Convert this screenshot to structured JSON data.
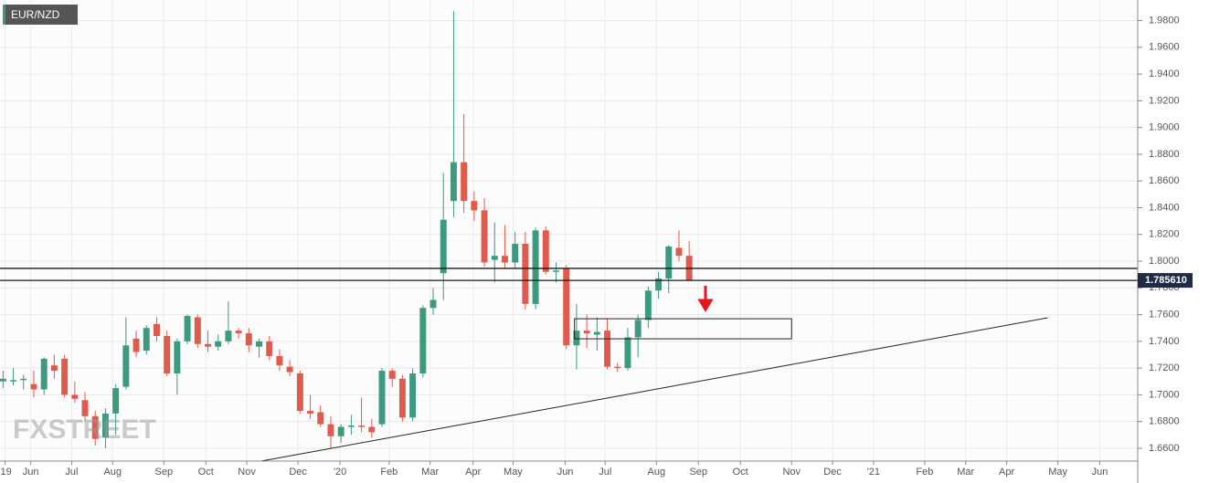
{
  "chart_data": {
    "type": "candlestick",
    "title": "EUR/NZD",
    "watermark": "FXSTREET",
    "up_color": "#3b9a80",
    "down_color": "#e05a4d",
    "grid": true,
    "xlim": [
      -0.3,
      110.8
    ],
    "ylim": [
      1.6504,
      1.9954
    ],
    "yticks": [
      {
        "value": 1.66,
        "label": "1.6600"
      },
      {
        "value": 1.68,
        "label": "1.6800"
      },
      {
        "value": 1.7,
        "label": "1.7000"
      },
      {
        "value": 1.72,
        "label": "1.7200"
      },
      {
        "value": 1.74,
        "label": "1.7400"
      },
      {
        "value": 1.76,
        "label": "1.7600"
      },
      {
        "value": 1.78,
        "label": "1.7800"
      },
      {
        "value": 1.8,
        "label": "1.8000"
      },
      {
        "value": 1.82,
        "label": "1.8200"
      },
      {
        "value": 1.84,
        "label": "1.8400"
      },
      {
        "value": 1.86,
        "label": "1.8600"
      },
      {
        "value": 1.88,
        "label": "1.8800"
      },
      {
        "value": 1.9,
        "label": "1.9000"
      },
      {
        "value": 1.92,
        "label": "1.9200"
      },
      {
        "value": 1.94,
        "label": "1.9400"
      },
      {
        "value": 1.96,
        "label": "1.9600"
      },
      {
        "value": 1.98,
        "label": "1.9800"
      }
    ],
    "xticks": [
      {
        "value": 0.2,
        "label": "'19"
      },
      {
        "value": 2.7,
        "label": "Jun"
      },
      {
        "value": 6.7,
        "label": "Jul"
      },
      {
        "value": 10.7,
        "label": "Aug"
      },
      {
        "value": 15.7,
        "label": "Sep"
      },
      {
        "value": 19.8,
        "label": "Oct"
      },
      {
        "value": 23.8,
        "label": "Nov"
      },
      {
        "value": 28.8,
        "label": "Dec"
      },
      {
        "value": 32.9,
        "label": "'20"
      },
      {
        "value": 37.7,
        "label": "Feb"
      },
      {
        "value": 41.7,
        "label": "Mar"
      },
      {
        "value": 45.9,
        "label": "Apr"
      },
      {
        "value": 49.8,
        "label": "May"
      },
      {
        "value": 54.9,
        "label": "Jun"
      },
      {
        "value": 58.8,
        "label": "Jul"
      },
      {
        "value": 63.8,
        "label": "Aug"
      },
      {
        "value": 67.9,
        "label": "Sep"
      },
      {
        "value": 72,
        "label": "Oct"
      },
      {
        "value": 77,
        "label": "Nov"
      },
      {
        "value": 81,
        "label": "Dec"
      },
      {
        "value": 85,
        "label": "'21"
      },
      {
        "value": 90,
        "label": "Feb"
      },
      {
        "value": 94,
        "label": "Mar"
      },
      {
        "value": 98,
        "label": "Apr"
      },
      {
        "value": 103,
        "label": "May"
      },
      {
        "value": 107.1,
        "label": "Jun"
      }
    ],
    "open": [
      1.71,
      1.711,
      1.711,
      1.708,
      1.704,
      1.722,
      1.727,
      1.7,
      1.696,
      1.684,
      1.668,
      1.686,
      1.706,
      1.742,
      1.733,
      1.753,
      1.744,
      1.716,
      1.74,
      1.758,
      1.738,
      1.736,
      1.74,
      1.748,
      1.746,
      1.736,
      1.74,
      1.729,
      1.721,
      1.716,
      1.688,
      1.687,
      1.678,
      1.669,
      1.676,
      1.677,
      1.676,
      1.678,
      1.718,
      1.712,
      1.683,
      1.716,
      1.765,
      1.791,
      1.845,
      1.874,
      1.845,
      1.838,
      1.801,
      1.804,
      1.799,
      1.813,
      1.768,
      1.823,
      1.792,
      1.795,
      1.737,
      1.748,
      1.745,
      1.748,
      1.721,
      1.72,
      1.743,
      1.756,
      1.778,
      1.787,
      1.81,
      1.804
    ],
    "high": [
      1.718,
      1.72,
      1.715,
      1.718,
      1.728,
      1.73,
      1.73,
      1.71,
      1.702,
      1.688,
      1.69,
      1.708,
      1.758,
      1.748,
      1.752,
      1.758,
      1.748,
      1.742,
      1.76,
      1.76,
      1.748,
      1.745,
      1.77,
      1.75,
      1.75,
      1.742,
      1.744,
      1.734,
      1.726,
      1.718,
      1.7,
      1.692,
      1.684,
      1.678,
      1.685,
      1.698,
      1.682,
      1.72,
      1.72,
      1.715,
      1.72,
      1.767,
      1.78,
      1.866,
      1.987,
      1.91,
      1.852,
      1.847,
      1.829,
      1.827,
      1.822,
      1.822,
      1.825,
      1.826,
      1.799,
      1.797,
      1.768,
      1.76,
      1.758,
      1.757,
      1.724,
      1.75,
      1.76,
      1.781,
      1.792,
      1.812,
      1.823,
      1.815
    ],
    "low": [
      1.705,
      1.707,
      1.704,
      1.698,
      1.7,
      1.712,
      1.698,
      1.694,
      1.68,
      1.662,
      1.66,
      1.67,
      1.704,
      1.728,
      1.73,
      1.74,
      1.714,
      1.7,
      1.738,
      1.735,
      1.732,
      1.733,
      1.738,
      1.742,
      1.732,
      1.728,
      1.726,
      1.718,
      1.714,
      1.686,
      1.682,
      1.676,
      1.66,
      1.664,
      1.67,
      1.672,
      1.668,
      1.676,
      1.706,
      1.68,
      1.68,
      1.713,
      1.76,
      1.771,
      1.833,
      1.836,
      1.83,
      1.796,
      1.784,
      1.795,
      1.795,
      1.764,
      1.764,
      1.79,
      1.784,
      1.734,
      1.719,
      1.735,
      1.733,
      1.719,
      1.717,
      1.718,
      1.728,
      1.75,
      1.772,
      1.776,
      1.8,
      1.786
    ],
    "close": [
      1.712,
      1.711,
      1.712,
      1.704,
      1.727,
      1.718,
      1.7,
      1.697,
      1.684,
      1.667,
      1.686,
      1.705,
      1.737,
      1.732,
      1.75,
      1.744,
      1.716,
      1.74,
      1.759,
      1.738,
      1.736,
      1.74,
      1.748,
      1.746,
      1.737,
      1.74,
      1.729,
      1.722,
      1.717,
      1.688,
      1.686,
      1.678,
      1.669,
      1.676,
      1.677,
      1.676,
      1.672,
      1.718,
      1.712,
      1.683,
      1.716,
      1.765,
      1.771,
      1.831,
      1.874,
      1.845,
      1.838,
      1.799,
      1.804,
      1.799,
      1.813,
      1.768,
      1.823,
      1.792,
      1.793,
      1.737,
      1.748,
      1.746,
      1.747,
      1.721,
      1.72,
      1.743,
      1.756,
      1.778,
      1.787,
      1.811,
      1.804,
      1.786
    ],
    "hlines": [
      1.7946,
      1.7856
    ],
    "price_label": "1.785610",
    "trendline": {
      "x": [
        25.2,
        102
      ],
      "y": [
        1.6504,
        1.7576
      ]
    },
    "zone": {
      "x": [
        55.8,
        77
      ],
      "y": [
        1.7419,
        1.7569
      ]
    }
  }
}
